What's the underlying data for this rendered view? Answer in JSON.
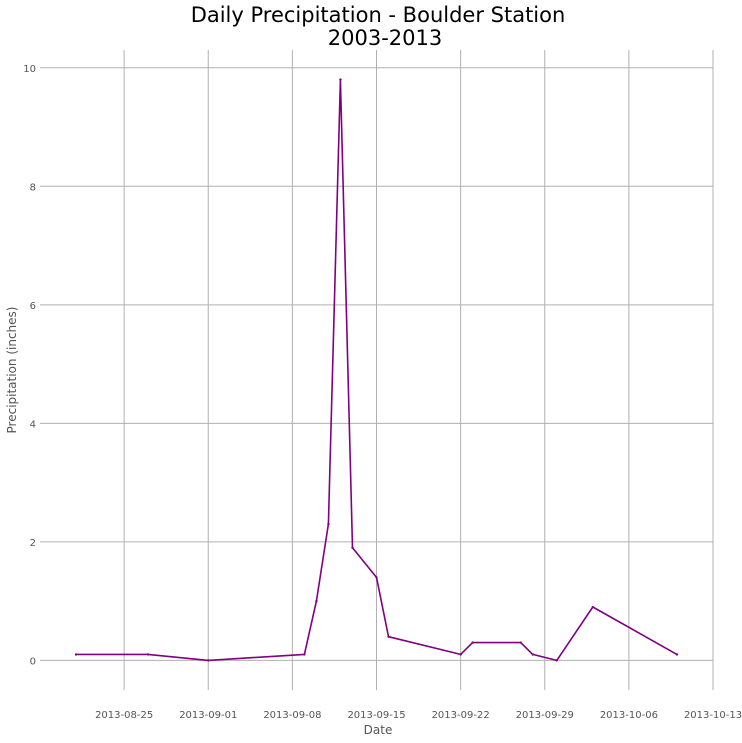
{
  "chart_data": {
    "type": "line",
    "title": "Daily Precipitation - Boulder Station",
    "subtitle": "2003-2013",
    "xlabel": "Date",
    "ylabel": "Precipitation (inches)",
    "x_ticks": [
      "2013-08-25",
      "2013-09-01",
      "2013-09-08",
      "2013-09-15",
      "2013-09-22",
      "2013-09-29",
      "2013-10-06",
      "2013-10-13"
    ],
    "y_ticks": [
      "0",
      "2",
      "4",
      "6",
      "8",
      "10"
    ],
    "xlim": [
      "2013-08-18",
      "2013-10-13"
    ],
    "ylim": [
      -0.5,
      10.3
    ],
    "grid": true,
    "series": [
      {
        "color": "#800080",
        "x": [
          "2013-08-21",
          "2013-08-27",
          "2013-09-01",
          "2013-09-09",
          "2013-09-10",
          "2013-09-11",
          "2013-09-12",
          "2013-09-13",
          "2013-09-15",
          "2013-09-16",
          "2013-09-22",
          "2013-09-23",
          "2013-09-27",
          "2013-09-28",
          "2013-09-30",
          "2013-10-03",
          "2013-10-10"
        ],
        "y": [
          0.1,
          0.1,
          0.0,
          0.1,
          1.0,
          2.3,
          9.8,
          1.9,
          1.4,
          0.4,
          0.1,
          0.3,
          0.3,
          0.1,
          0.0,
          0.9,
          0.1
        ]
      }
    ]
  }
}
